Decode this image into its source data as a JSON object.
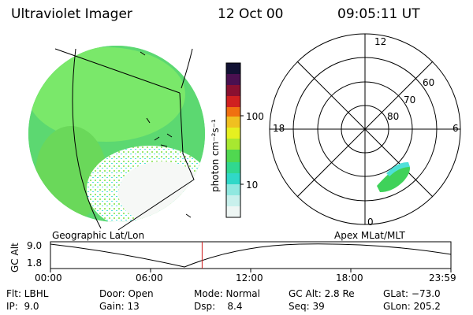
{
  "header": {
    "title": "Ultraviolet Imager",
    "date": "12 Oct 00",
    "time": "09:05:11 UT"
  },
  "colorbar": {
    "unit_label": "photon cm⁻²s⁻¹",
    "ticks": [
      "100",
      "10"
    ]
  },
  "polar": {
    "mlt_labels": {
      "top": "12",
      "left": "18",
      "right": "6",
      "bottom": "0"
    },
    "lat_labels": [
      "60",
      "70",
      "80"
    ]
  },
  "map_labels": {
    "left": "Geographic Lat/Lon",
    "right": "Apex MLat/MLT"
  },
  "altitude_plot": {
    "ylabel": "GC Alt",
    "yticks": [
      "9.0",
      "1.8"
    ],
    "xticks": [
      "00:00",
      "06:00",
      "12:00",
      "18:00",
      "23:59"
    ],
    "current_time_marker_hours": 9.09
  },
  "status": {
    "row1": {
      "flt": "Flt: LBHL",
      "door": "Door: Open",
      "mode": "Mode: Normal",
      "gc_alt": "GC Alt: 2.8 Re",
      "glat": "GLat: −73.0"
    },
    "row2": {
      "ip": "IP:  9.0",
      "gain": "Gain: 13",
      "dsp": "Dsp:    8.4",
      "seq": "Seq: 39",
      "glon": "GLon: 205.2"
    }
  },
  "colors": {
    "aurora_green": "#3fd25a",
    "aurora_light": "#9ee86f",
    "aurora_cyan": "#4fe0d8"
  }
}
